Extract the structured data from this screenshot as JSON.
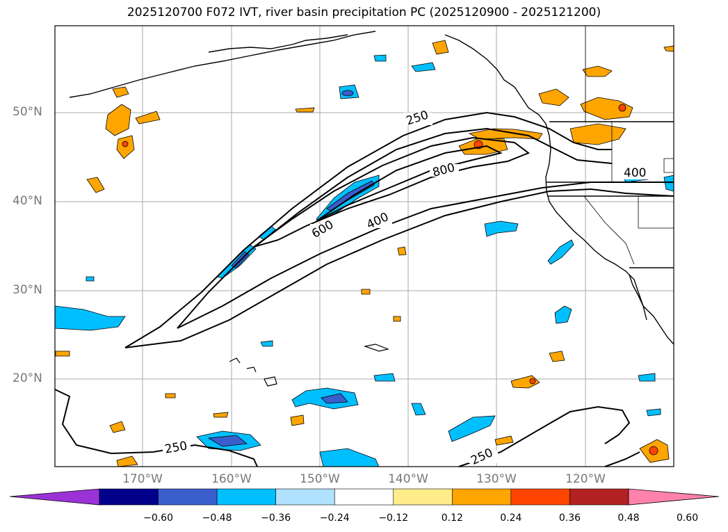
{
  "title": "2025120700 F072 IVT, river basin precipitation PC (2025120900 - 2025121200)",
  "lat_labels": [
    "50°N",
    "40°N",
    "30°N",
    "20°N"
  ],
  "lon_labels": [
    "170°W",
    "160°W",
    "150°W",
    "140°W",
    "130°W",
    "120°W"
  ],
  "contour_labels": {
    "c250_top": "250",
    "c800": "800",
    "c600": "600",
    "c400": "400",
    "c400_east": "400",
    "c250_bottom_left": "250",
    "c250_bottom_right": "250"
  },
  "colorbar": {
    "labels": [
      "−0.60",
      "−0.48",
      "−0.36",
      "−0.24",
      "−0.12",
      "0.12",
      "0.24",
      "0.36",
      "0.48",
      "0.60"
    ],
    "colors": [
      "#9b32d6",
      "#00008b",
      "#3a5fcd",
      "#00bfff",
      "#b0e2ff",
      "#ffffff",
      "#ffec8b",
      "#ffa500",
      "#ff4500",
      "#b22222",
      "#ff82ab"
    ]
  },
  "palette": {
    "grid": "#aaaaaa",
    "contour": "#000000",
    "orange": "#ffa500",
    "red": "#ff4500",
    "light_blue": "#00bfff",
    "mid_blue": "#3a5fcd"
  }
}
